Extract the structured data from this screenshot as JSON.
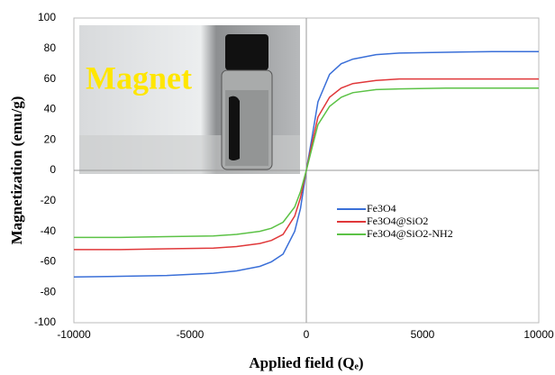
{
  "chart_data": {
    "type": "line",
    "xlabel": "Applied field (Qₑ)",
    "ylabel": "Magnetization (emu/g)",
    "inset_label": "Magnet",
    "x": [
      -10000,
      -8000,
      -6000,
      -4000,
      -3000,
      -2000,
      -1500,
      -1000,
      -500,
      -250,
      0,
      250,
      500,
      1000,
      1500,
      2000,
      3000,
      4000,
      6000,
      8000,
      10000
    ],
    "series": [
      {
        "name": "Fe3O4",
        "color": "#3a6fd8",
        "values": [
          -70,
          -69.5,
          -69,
          -67.5,
          -66,
          -63,
          -60,
          -55,
          -40,
          -25,
          0,
          22,
          45,
          63,
          70,
          73,
          76,
          77,
          77.5,
          78,
          78
        ]
      },
      {
        "name": "Fe3O4@SiO2",
        "color": "#e0383a",
        "values": [
          -52,
          -52,
          -51.5,
          -51,
          -50,
          -48,
          -46,
          -42,
          -30,
          -18,
          0,
          18,
          35,
          48,
          54,
          57,
          59,
          60,
          60,
          60,
          60
        ]
      },
      {
        "name": "Fe3O4@SiO2-NH2",
        "color": "#5cc246",
        "values": [
          -44,
          -44,
          -43.5,
          -43,
          -42,
          -40,
          -38,
          -34,
          -24,
          -14,
          0,
          15,
          30,
          42,
          48,
          51,
          53,
          53.5,
          54,
          54,
          54
        ]
      }
    ],
    "xlim": [
      -10000,
      10000
    ],
    "xticks": [
      -10000,
      -5000,
      0,
      5000,
      10000
    ],
    "ylim": [
      -100,
      100
    ],
    "yticks": [
      -100,
      -80,
      -60,
      -40,
      -20,
      0,
      20,
      40,
      60,
      80,
      100
    ],
    "legend": "right"
  }
}
